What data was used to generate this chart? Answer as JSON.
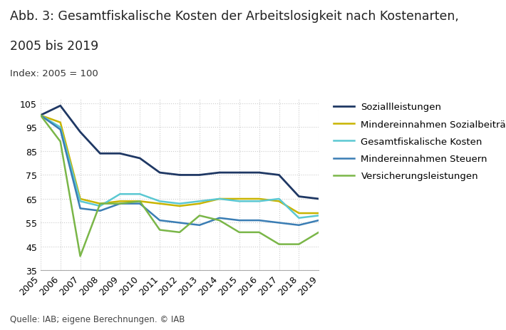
{
  "title_line1": "Abb. 3: Gesamtfiskalische Kosten der Arbeitslosigkeit nach Kostenarten,",
  "title_line2": "2005 bis 2019",
  "subtitle": "Index: 2005 = 100",
  "footnote": "Quelle: IAB; eigene Berechnungen. © IAB",
  "years": [
    2005,
    2006,
    2007,
    2008,
    2009,
    2010,
    2011,
    2012,
    2013,
    2014,
    2015,
    2016,
    2017,
    2018,
    2019
  ],
  "series": {
    "Soziallleistungen": {
      "values": [
        100,
        104,
        93,
        84,
        84,
        82,
        76,
        75,
        75,
        76,
        76,
        76,
        75,
        66,
        65
      ],
      "color": "#1f3864",
      "linewidth": 2.0
    },
    "Mindereinnahmen Sozialbeiträge": {
      "values": [
        100,
        97,
        65,
        63,
        64,
        64,
        63,
        62,
        63,
        65,
        65,
        65,
        64,
        59,
        59
      ],
      "color": "#c8b400",
      "linewidth": 1.8
    },
    "Gesamtfiskalische Kosten": {
      "values": [
        100,
        95,
        64,
        62,
        67,
        67,
        64,
        63,
        64,
        65,
        64,
        64,
        65,
        57,
        58
      ],
      "color": "#5bc8d2",
      "linewidth": 1.8
    },
    "Mindereinnahmen Steuern": {
      "values": [
        100,
        94,
        61,
        60,
        63,
        63,
        56,
        55,
        54,
        57,
        56,
        56,
        55,
        54,
        56
      ],
      "color": "#3a7db4",
      "linewidth": 1.8
    },
    "Versicherungsleistungen": {
      "values": [
        100,
        89,
        41,
        63,
        63,
        64,
        52,
        51,
        58,
        56,
        51,
        51,
        46,
        46,
        51
      ],
      "color": "#7ab648",
      "linewidth": 1.8
    }
  },
  "ylim": [
    35,
    107
  ],
  "yticks": [
    35,
    45,
    55,
    65,
    75,
    85,
    95,
    105
  ],
  "background_color": "#ffffff",
  "grid_color": "#cccccc",
  "title_fontsize": 12.5,
  "subtitle_fontsize": 9.5,
  "tick_fontsize": 9,
  "legend_fontsize": 9.5,
  "footnote_fontsize": 8.5
}
